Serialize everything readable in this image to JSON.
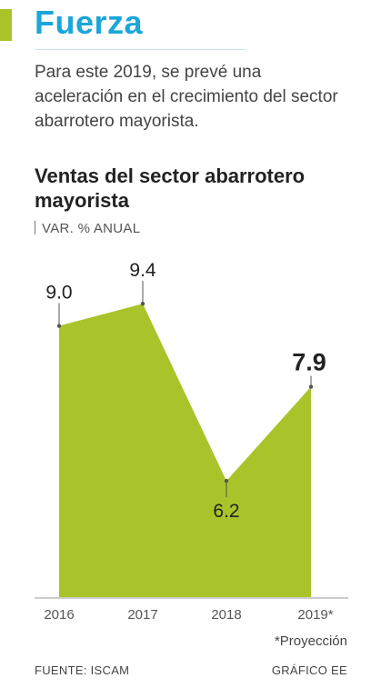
{
  "header": {
    "title": "Fuerza",
    "intro": "Para este 2019, se prevé una aceleración en el crecimiento del sector abarrotero mayorista."
  },
  "chart_data": {
    "type": "area",
    "title": "Ventas del sector abarrotero mayorista",
    "subtitle": "VAR. % ANUAL",
    "categories": [
      "2016",
      "2017",
      "2018",
      "2019*"
    ],
    "values": [
      9.0,
      9.4,
      6.2,
      7.9
    ],
    "value_labels": [
      "9.0",
      "9.4",
      "6.2",
      "7.9"
    ],
    "highlight_index": 3,
    "ylim": [
      4.1,
      9.6
    ],
    "grid": false,
    "colors": {
      "fill": "#a9c42a",
      "axis": "#999999",
      "label": "#222222"
    }
  },
  "footer": {
    "note": "*Proyección",
    "source": "FUENTE: ISCAM",
    "credit": "GRÁFICO EE"
  }
}
